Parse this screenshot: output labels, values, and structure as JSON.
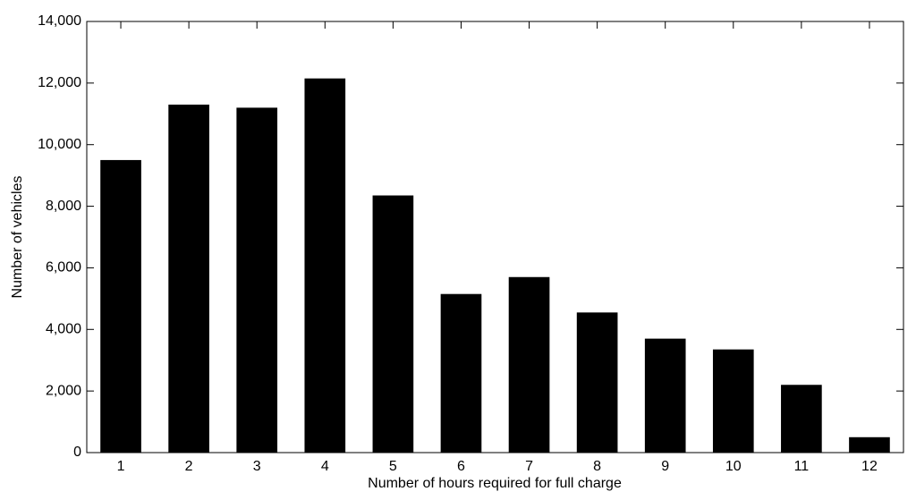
{
  "chart_data": {
    "type": "bar",
    "x_label": "Number of hours required for full charge",
    "y_label": "Number of vehicles",
    "categories": [
      "1",
      "2",
      "3",
      "4",
      "5",
      "6",
      "7",
      "8",
      "9",
      "10",
      "11",
      "12"
    ],
    "values": [
      9500,
      11300,
      11200,
      12150,
      8350,
      5150,
      5700,
      4550,
      3700,
      3350,
      2200,
      500
    ],
    "color": "#000000",
    "ylim": [
      0,
      14000
    ],
    "yticks": [
      0,
      {
        "value": 2000,
        "label": "2,000"
      },
      {
        "value": 4000,
        "label": "4,000"
      },
      {
        "value": 6000,
        "label": "6,000"
      },
      {
        "value": 8000,
        "label": "8,000"
      },
      {
        "value": 10000,
        "label": "10,000"
      },
      {
        "value": 12000,
        "label": "12,000"
      },
      {
        "value": 14000,
        "label": "14,000"
      }
    ],
    "grid": false
  }
}
